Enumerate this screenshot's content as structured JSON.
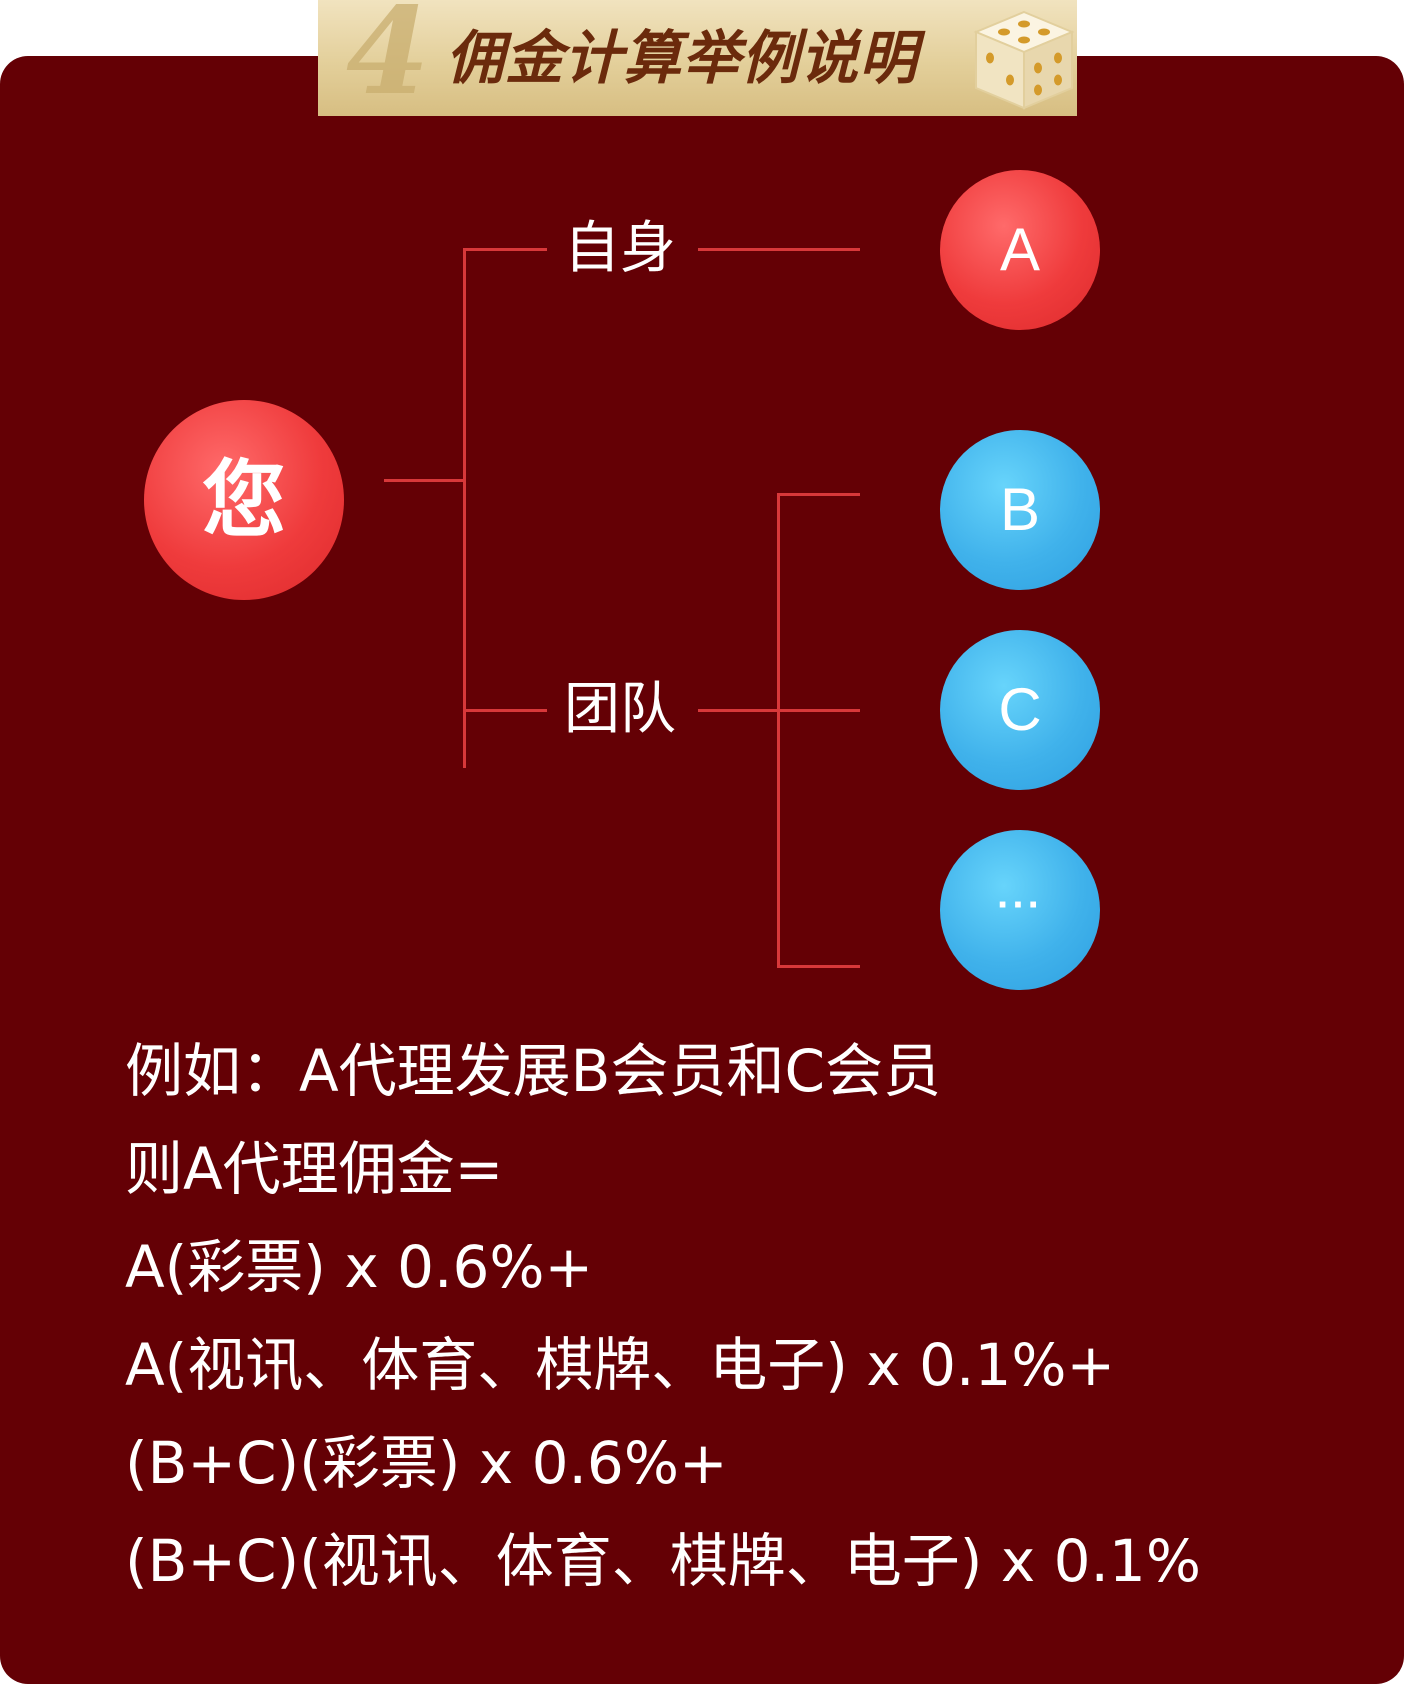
{
  "banner": {
    "number": "4",
    "title": "佣金计算举例说明"
  },
  "tree": {
    "root_label": "您",
    "branch_self_label": "自身",
    "branch_team_label": "团队",
    "nodes": {
      "a": "A",
      "b": "B",
      "c": "C",
      "more": "···"
    }
  },
  "explanation": {
    "lines": [
      "例如：A代理发展B会员和C会员",
      "则A代理佣金=",
      "A(彩票) x 0.6%+",
      "A(视讯、体育、棋牌、电子) x 0.1%+",
      "(B+C)(彩票) x 0.6%+",
      "(B+C)(视讯、体育、棋牌、电子) x 0.1%"
    ]
  },
  "colors": {
    "card_background": "#640005",
    "connector": "#d8383a",
    "node_red": "#ea3537",
    "node_blue": "#3aaee8",
    "banner_gold": "#e3cf9a",
    "banner_text": "#6b2a0c"
  },
  "icons": {
    "banner_decoration": "dice-icon"
  }
}
